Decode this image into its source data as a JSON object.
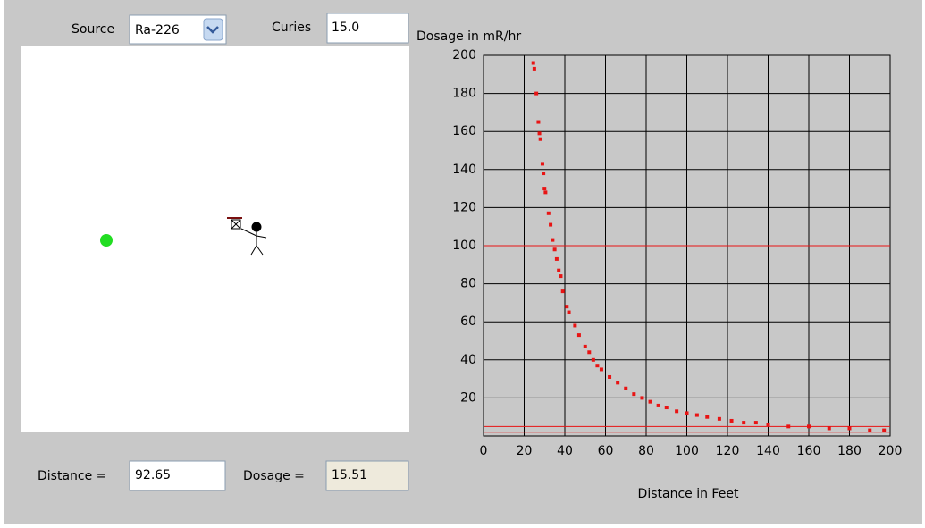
{
  "controls": {
    "source_label": "Source",
    "source_value": "Ra-226",
    "curies_label": "Curies",
    "curies_value": "15.0",
    "distance_label": "Distance =",
    "distance_value": "92.65",
    "dosage_label": "Dosage =",
    "dosage_value": "15.51"
  },
  "chart_data": {
    "type": "scatter",
    "y_label": "Dosage in mR/hr",
    "x_label": "Distance in Feet",
    "x": [
      24.5,
      25,
      26,
      27,
      27.5,
      28,
      29,
      29.5,
      30,
      30.5,
      32,
      33,
      34,
      35,
      36,
      37,
      38,
      39,
      41,
      42,
      45,
      47,
      50,
      52,
      54,
      56,
      58,
      62,
      66,
      70,
      74,
      78,
      82,
      86,
      90,
      95,
      100,
      105,
      110,
      116,
      122,
      128,
      134,
      140,
      150,
      160,
      170,
      180,
      190,
      197
    ],
    "values": [
      196,
      193,
      180,
      165,
      159,
      156,
      143,
      138,
      130,
      128,
      117,
      111,
      103,
      98,
      93,
      87,
      84,
      76,
      68,
      65,
      58,
      53,
      47,
      44,
      40,
      37,
      35,
      31,
      28,
      25,
      22,
      20,
      18,
      16,
      15,
      13,
      12,
      11,
      10,
      9,
      8,
      7,
      7,
      6,
      5,
      5,
      4,
      4,
      3,
      3
    ],
    "color": "#e81414",
    "hlines": [
      100,
      5,
      2
    ],
    "hline_color": "#e81414",
    "xlim": [
      0,
      200
    ],
    "ylim": [
      0,
      200
    ],
    "xticks": [
      0,
      20,
      40,
      60,
      80,
      100,
      120,
      140,
      160,
      180,
      200
    ],
    "yticks": [
      20,
      40,
      60,
      80,
      100,
      120,
      140,
      160,
      180,
      200
    ],
    "grid": true
  }
}
